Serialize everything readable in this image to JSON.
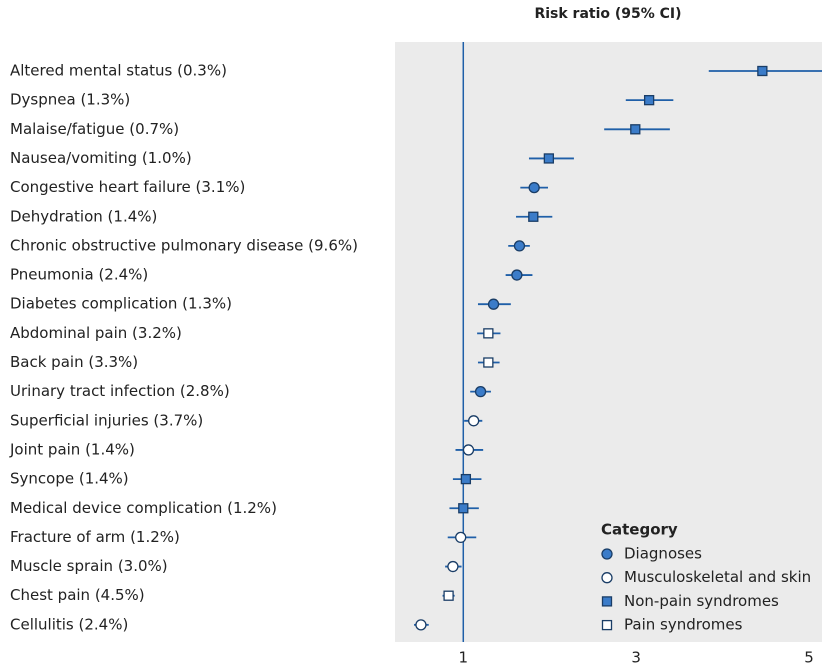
{
  "chart_data": {
    "type": "forest",
    "title": "Risk ratio (95% CI)",
    "categories": [
      "Altered mental status (0.3%)",
      "Dyspnea (1.3%)",
      "Malaise/fatigue (0.7%)",
      "Nausea/vomiting (1.0%)",
      "Congestive heart failure (3.1%)",
      "Dehydration (1.4%)",
      "Chronic obstructive pulmonary disease (9.6%)",
      "Pneumonia (2.4%)",
      "Diabetes complication (1.3%)",
      "Abdominal pain (3.2%)",
      "Back pain (3.3%)",
      "Urinary tract infection (2.8%)",
      "Superficial injuries (3.7%)",
      "Joint pain (1.4%)",
      "Syncope (1.4%)",
      "Medical device complication (1.2%)",
      "Fracture of arm (1.2%)",
      "Muscle sprain (3.0%)",
      "Chest pain (4.5%)",
      "Cellulitis (2.4%)"
    ],
    "legend_title": "Category",
    "series": [
      {
        "name": "Diagnoses",
        "marker": "circle",
        "fill": "#3b7cc9",
        "values": [
          null,
          null,
          null,
          null,
          1.82,
          null,
          1.65,
          1.62,
          1.35,
          null,
          null,
          1.2,
          null,
          null,
          null,
          null,
          null,
          null,
          null,
          null
        ],
        "lower": [
          null,
          null,
          null,
          null,
          1.66,
          null,
          1.52,
          1.49,
          1.17,
          null,
          null,
          1.08,
          null,
          null,
          null,
          null,
          null,
          null,
          null,
          null
        ],
        "upper": [
          null,
          null,
          null,
          null,
          1.98,
          null,
          1.77,
          1.8,
          1.55,
          null,
          null,
          1.32,
          null,
          null,
          null,
          null,
          null,
          null,
          null,
          null
        ]
      },
      {
        "name": "Musculoskeletal and skin",
        "marker": "circle",
        "fill": "#ffffff",
        "values": [
          null,
          null,
          null,
          null,
          null,
          null,
          null,
          null,
          null,
          null,
          null,
          null,
          1.12,
          1.06,
          null,
          null,
          0.97,
          0.88,
          null,
          0.51
        ],
        "lower": [
          null,
          null,
          null,
          null,
          null,
          null,
          null,
          null,
          null,
          null,
          null,
          null,
          1.01,
          0.91,
          null,
          null,
          0.82,
          0.79,
          null,
          0.43
        ],
        "upper": [
          null,
          null,
          null,
          null,
          null,
          null,
          null,
          null,
          null,
          null,
          null,
          null,
          1.22,
          1.23,
          null,
          null,
          1.15,
          0.98,
          null,
          0.6
        ]
      },
      {
        "name": "Non-pain syndromes",
        "marker": "square",
        "fill": "#3b7cc9",
        "values": [
          4.46,
          3.15,
          2.99,
          1.99,
          null,
          1.81,
          null,
          null,
          null,
          null,
          null,
          null,
          null,
          null,
          1.03,
          1.0,
          null,
          null,
          null,
          null
        ],
        "lower": [
          3.84,
          2.88,
          2.63,
          1.76,
          null,
          1.61,
          null,
          null,
          null,
          null,
          null,
          null,
          null,
          null,
          0.88,
          0.84,
          null,
          null,
          null,
          null
        ],
        "upper": [
          5.15,
          3.43,
          3.39,
          2.28,
          null,
          2.03,
          null,
          null,
          null,
          null,
          null,
          null,
          null,
          null,
          1.21,
          1.18,
          null,
          null,
          null,
          null
        ]
      },
      {
        "name": "Pain syndromes",
        "marker": "square",
        "fill": "#ffffff",
        "values": [
          null,
          null,
          null,
          null,
          null,
          null,
          null,
          null,
          null,
          1.29,
          1.29,
          null,
          null,
          null,
          null,
          null,
          null,
          null,
          0.83,
          null
        ],
        "lower": [
          null,
          null,
          null,
          null,
          null,
          null,
          null,
          null,
          null,
          1.16,
          1.17,
          null,
          null,
          null,
          null,
          null,
          null,
          null,
          0.76,
          null
        ],
        "upper": [
          null,
          null,
          null,
          null,
          null,
          null,
          null,
          null,
          null,
          1.43,
          1.42,
          null,
          null,
          null,
          null,
          null,
          null,
          null,
          0.9,
          null
        ]
      }
    ],
    "line_color": "#1f5fa8",
    "reference_line": 1,
    "xlim": [
      0.21,
      5.15
    ],
    "xticks": [
      1,
      3,
      5
    ]
  }
}
